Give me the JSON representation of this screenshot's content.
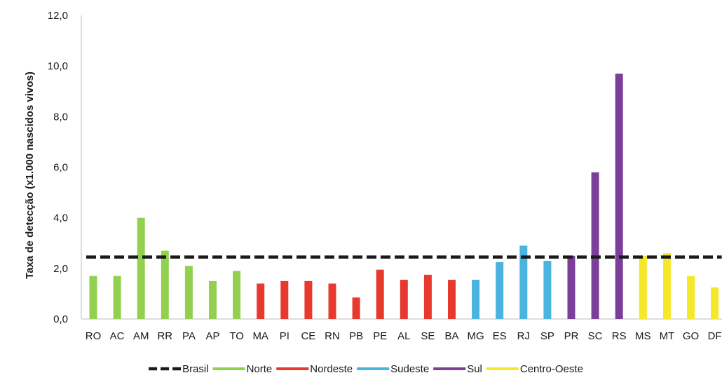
{
  "chart_data": {
    "type": "bar",
    "ylabel": "Taxa de detecção (x1.000 nascidos vivos)",
    "ylim": [
      0,
      12
    ],
    "yticks": [
      "0,0",
      "2,0",
      "4,0",
      "6,0",
      "8,0",
      "10,0",
      "12,0"
    ],
    "grid": false,
    "legend_position": "bottom",
    "reference_line": {
      "name": "Brasil",
      "value": 2.45,
      "color": "#1a1a1a",
      "style": "dashed"
    },
    "regions": [
      {
        "name": "Norte",
        "color": "#92d050"
      },
      {
        "name": "Nordeste",
        "color": "#e8392e"
      },
      {
        "name": "Sudeste",
        "color": "#4bb3e0"
      },
      {
        "name": "Sul",
        "color": "#7b3f9a"
      },
      {
        "name": "Centro-Oeste",
        "color": "#f5e82a"
      }
    ],
    "categories": [
      "RO",
      "AC",
      "AM",
      "RR",
      "PA",
      "AP",
      "TO",
      "MA",
      "PI",
      "CE",
      "RN",
      "PB",
      "PE",
      "AL",
      "SE",
      "BA",
      "MG",
      "ES",
      "RJ",
      "SP",
      "PR",
      "SC",
      "RS",
      "MS",
      "MT",
      "GO",
      "DF"
    ],
    "category_region": [
      "Norte",
      "Norte",
      "Norte",
      "Norte",
      "Norte",
      "Norte",
      "Norte",
      "Nordeste",
      "Nordeste",
      "Nordeste",
      "Nordeste",
      "Nordeste",
      "Nordeste",
      "Nordeste",
      "Nordeste",
      "Nordeste",
      "Sudeste",
      "Sudeste",
      "Sudeste",
      "Sudeste",
      "Sul",
      "Sul",
      "Sul",
      "Centro-Oeste",
      "Centro-Oeste",
      "Centro-Oeste",
      "Centro-Oeste"
    ],
    "values": [
      1.7,
      1.7,
      4.0,
      2.7,
      2.1,
      1.5,
      1.9,
      1.4,
      1.5,
      1.5,
      1.4,
      0.85,
      1.95,
      1.55,
      1.75,
      1.55,
      1.55,
      2.25,
      2.9,
      2.3,
      2.5,
      5.8,
      9.7,
      2.5,
      2.6,
      1.7,
      1.25
    ],
    "legend": [
      "Brasil",
      "Norte",
      "Nordeste",
      "Sudeste",
      "Sul",
      "Centro-Oeste"
    ]
  }
}
